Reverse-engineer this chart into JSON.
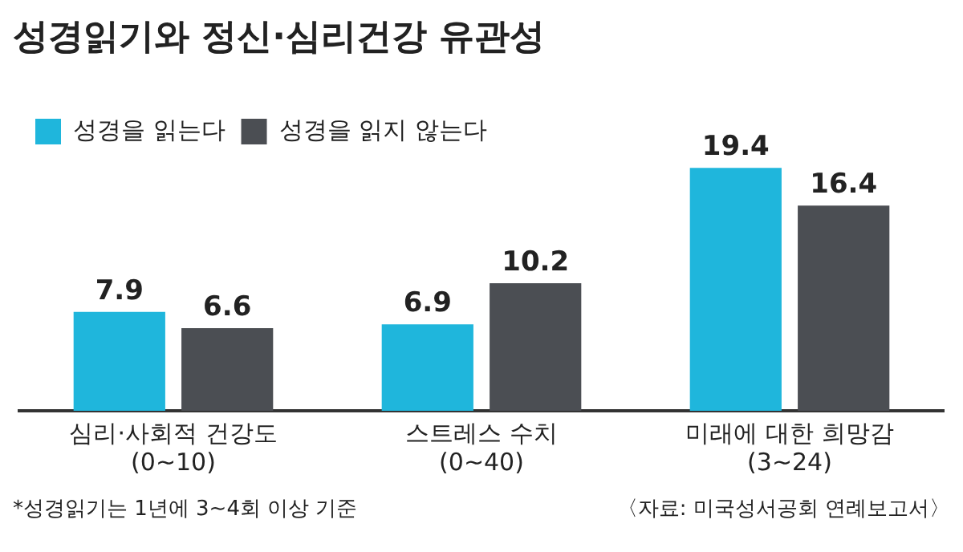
{
  "chart_data": {
    "type": "bar",
    "title": "성경읽기와 정신·심리건강 유관성",
    "categories": [
      "심리·사회적 건강도\n(0~10)",
      "스트레스 수치\n(0~40)",
      "미래에 대한 희망감\n(3~24)"
    ],
    "series": [
      {
        "name": "성경을 읽는다",
        "color": "#1fb6dc",
        "values": [
          7.9,
          6.9,
          19.4
        ]
      },
      {
        "name": "성경을 읽지 않는다",
        "color": "#4b4e53",
        "values": [
          6.6,
          10.2,
          16.4
        ]
      }
    ],
    "data_labels": true,
    "legend": "top left",
    "grid": false,
    "annotations": [
      "*성경읽기는 1년에 3~4회 이상 기준",
      "〈자료: 미국성서공회 연례보고서〉"
    ]
  }
}
